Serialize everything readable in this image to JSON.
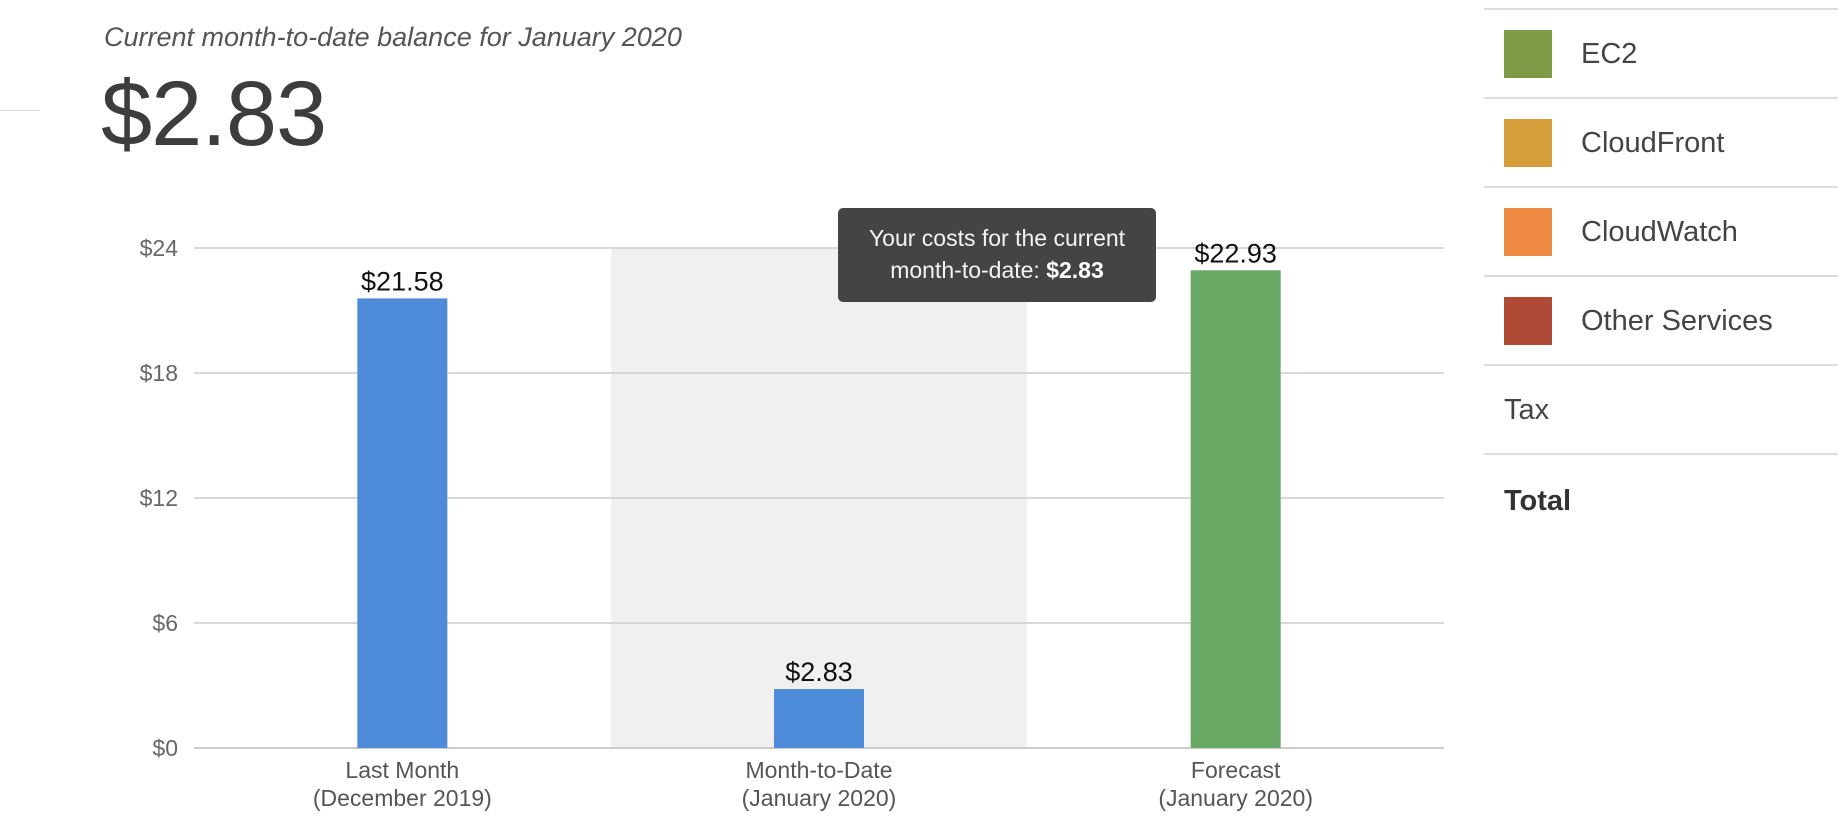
{
  "header": {
    "subtitle": "Current month-to-date balance for January 2020",
    "balance": "$2.83"
  },
  "tooltip": {
    "line1": "Your costs for the current",
    "line2_prefix": "month-to-date: ",
    "line2_value": "$2.83"
  },
  "legend": {
    "items": [
      {
        "label": "EC2",
        "color": "#7d9a46"
      },
      {
        "label": "CloudFront",
        "color": "#d59e3a"
      },
      {
        "label": "CloudWatch",
        "color": "#ef8a43"
      },
      {
        "label": "Other Services",
        "color": "#b04a36"
      }
    ],
    "tax_label": "Tax",
    "total_label": "Total"
  },
  "chart_data": {
    "type": "bar",
    "categories": [
      {
        "line1": "Last Month",
        "line2": "(December 2019)"
      },
      {
        "line1": "Month-to-Date",
        "line2": "(January 2020)"
      },
      {
        "line1": "Forecast",
        "line2": "(January 2020)"
      }
    ],
    "values": [
      21.58,
      2.83,
      22.93
    ],
    "data_labels": [
      "$21.58",
      "$2.83",
      "$22.93"
    ],
    "colors": [
      "#4e8bd8",
      "#4e8bd8",
      "#6aa866"
    ],
    "highlighted_index": 1,
    "highlight_color": "#f0f0f0",
    "ylim": [
      0,
      24
    ],
    "yticks": [
      0,
      6,
      12,
      18,
      24
    ],
    "ytick_labels": [
      "$0",
      "$6",
      "$12",
      "$18",
      "$24"
    ],
    "grid": true,
    "title": "",
    "xlabel": "",
    "ylabel": ""
  }
}
